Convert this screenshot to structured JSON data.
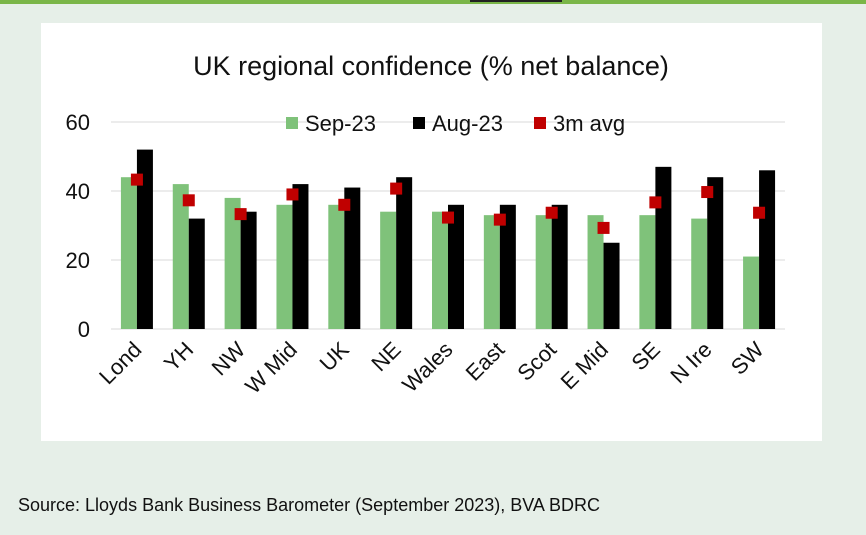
{
  "source": "Source: Lloyds Bank Business Barometer (September 2023), BVA BDRC",
  "colors": {
    "sep": "#7fc27a",
    "aug": "#000000",
    "avg": "#c00000",
    "grid": "#d9d9d9"
  },
  "chart_data": {
    "type": "bar",
    "title": "UK regional confidence (% net balance)",
    "xlabel": "",
    "ylabel": "",
    "ylim": [
      0,
      60
    ],
    "yticks": [
      0,
      20,
      40,
      60
    ],
    "grid": true,
    "legend": "top-center",
    "categories": [
      "Lond",
      "YH",
      "NW",
      "W Mid",
      "UK",
      "NE",
      "Wales",
      "East",
      "Scot",
      "E Mid",
      "SE",
      "N Ire",
      "SW"
    ],
    "series": [
      {
        "name": "Sep-23",
        "kind": "bar",
        "color": "#7fc27a",
        "values": [
          44,
          42,
          38,
          36,
          36,
          34,
          34,
          33,
          33,
          33,
          33,
          32,
          21
        ]
      },
      {
        "name": "Aug-23",
        "kind": "bar",
        "color": "#000000",
        "values": [
          52,
          32,
          34,
          42,
          41,
          44,
          36,
          36,
          36,
          25,
          47,
          44,
          46
        ]
      },
      {
        "name": "3m avg",
        "kind": "marker",
        "color": "#c00000",
        "values": [
          43.3,
          37.3,
          33.3,
          39,
          36,
          40.7,
          32.3,
          31.7,
          33.7,
          29.3,
          36.7,
          39.7,
          33.7
        ]
      }
    ]
  }
}
